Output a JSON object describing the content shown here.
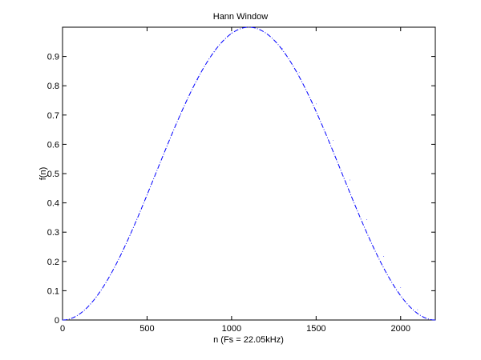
{
  "chart_data": {
    "type": "line",
    "title": "Hann Window",
    "xlabel": "n (Fs = 22.05kHz)",
    "ylabel": "f(n)",
    "xlim": [
      0,
      2205
    ],
    "ylim": [
      0,
      1
    ],
    "grid": false,
    "x_ticks": [
      {
        "value": 0,
        "label": "0"
      },
      {
        "value": 500,
        "label": "500"
      },
      {
        "value": 1000,
        "label": "1000"
      },
      {
        "value": 1500,
        "label": "1500"
      },
      {
        "value": 2000,
        "label": "2000"
      }
    ],
    "y_ticks": [
      {
        "value": 0,
        "label": "0"
      },
      {
        "value": 0.1,
        "label": "0.1"
      },
      {
        "value": 0.2,
        "label": "0.2"
      },
      {
        "value": 0.3,
        "label": "0.3"
      },
      {
        "value": 0.4,
        "label": "0.4"
      },
      {
        "value": 0.5,
        "label": "0.5"
      },
      {
        "value": 0.6,
        "label": "0.6"
      },
      {
        "value": 0.7,
        "label": "0.7"
      },
      {
        "value": 0.8,
        "label": "0.8"
      },
      {
        "value": 0.9,
        "label": "0.9"
      }
    ],
    "series": [
      {
        "color": "#0000ff",
        "line_style": "dash-dot",
        "x": [
          0,
          100,
          200,
          300,
          400,
          500,
          600,
          700,
          800,
          900,
          1000,
          1103,
          1200,
          1300,
          1400,
          1500,
          1600,
          1700,
          1800,
          1900,
          2000,
          2100,
          2205
        ],
        "y": [
          0,
          0.02,
          0.079,
          0.172,
          0.291,
          0.427,
          0.566,
          0.701,
          0.82,
          0.916,
          0.979,
          1.0,
          0.981,
          0.928,
          0.845,
          0.738,
          0.613,
          0.478,
          0.343,
          0.217,
          0.111,
          0.035,
          0
        ]
      }
    ]
  }
}
